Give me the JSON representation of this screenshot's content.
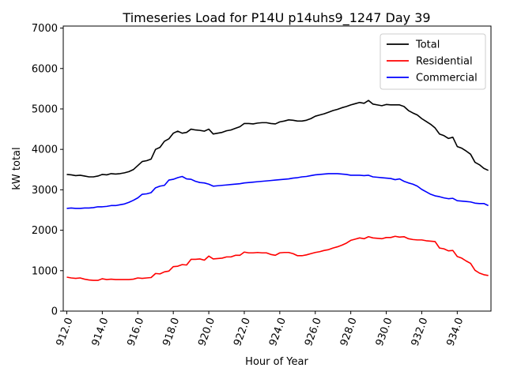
{
  "chart_data": {
    "type": "line",
    "title": "Timeseries Load for P14U p14uhs9_1247  Day 39",
    "xlabel": "Hour of Year",
    "ylabel": "kW total",
    "xlim": [
      911.8,
      935.9
    ],
    "ylim": [
      0,
      7050
    ],
    "xticks": [
      912,
      914,
      916,
      918,
      920,
      922,
      924,
      926,
      928,
      930,
      932,
      934
    ],
    "xtick_labels": [
      "912.0",
      "914.0",
      "916.0",
      "918.0",
      "920.0",
      "922.0",
      "924.0",
      "926.0",
      "928.0",
      "930.0",
      "932.0",
      "934.0"
    ],
    "yticks": [
      0,
      1000,
      2000,
      3000,
      4000,
      5000,
      6000,
      7000
    ],
    "ytick_labels": [
      "0",
      "1000",
      "2000",
      "3000",
      "4000",
      "5000",
      "6000",
      "7000"
    ],
    "legend_position": "top-right",
    "x": [
      912.0,
      912.25,
      912.5,
      912.75,
      913.0,
      913.25,
      913.5,
      913.75,
      914.0,
      914.25,
      914.5,
      914.75,
      915.0,
      915.25,
      915.5,
      915.75,
      916.0,
      916.25,
      916.5,
      916.75,
      917.0,
      917.25,
      917.5,
      917.75,
      918.0,
      918.25,
      918.5,
      918.75,
      919.0,
      919.25,
      919.5,
      919.75,
      920.0,
      920.25,
      920.5,
      920.75,
      921.0,
      921.25,
      921.5,
      921.75,
      922.0,
      922.25,
      922.5,
      922.75,
      923.0,
      923.25,
      923.5,
      923.75,
      924.0,
      924.25,
      924.5,
      924.75,
      925.0,
      925.25,
      925.5,
      925.75,
      926.0,
      926.25,
      926.5,
      926.75,
      927.0,
      927.25,
      927.5,
      927.75,
      928.0,
      928.25,
      928.5,
      928.75,
      929.0,
      929.25,
      929.5,
      929.75,
      930.0,
      930.25,
      930.5,
      930.75,
      931.0,
      931.25,
      931.5,
      931.75,
      932.0,
      932.25,
      932.5,
      932.75,
      933.0,
      933.25,
      933.5,
      933.75,
      934.0,
      934.25,
      934.5,
      934.75,
      935.0,
      935.25,
      935.5,
      935.75
    ],
    "series": [
      {
        "name": "Total",
        "color": "#000000",
        "values": [
          3380,
          3370,
          3350,
          3360,
          3340,
          3320,
          3320,
          3340,
          3380,
          3370,
          3400,
          3390,
          3400,
          3420,
          3450,
          3500,
          3600,
          3700,
          3720,
          3760,
          4000,
          4050,
          4200,
          4260,
          4400,
          4450,
          4400,
          4420,
          4500,
          4480,
          4470,
          4450,
          4500,
          4380,
          4400,
          4420,
          4460,
          4480,
          4520,
          4560,
          4640,
          4640,
          4630,
          4650,
          4660,
          4660,
          4640,
          4630,
          4680,
          4700,
          4730,
          4720,
          4700,
          4700,
          4720,
          4760,
          4820,
          4850,
          4880,
          4920,
          4960,
          4990,
          5030,
          5060,
          5100,
          5130,
          5160,
          5140,
          5210,
          5120,
          5100,
          5080,
          5110,
          5100,
          5100,
          5100,
          5060,
          4960,
          4900,
          4850,
          4760,
          4690,
          4620,
          4530,
          4380,
          4340,
          4270,
          4300,
          4070,
          4030,
          3960,
          3880,
          3680,
          3620,
          3530,
          3480
        ]
      },
      {
        "name": "Residential",
        "color": "#ff0000",
        "values": [
          840,
          820,
          810,
          820,
          790,
          770,
          760,
          760,
          800,
          780,
          790,
          780,
          780,
          780,
          780,
          790,
          820,
          810,
          820,
          830,
          930,
          920,
          970,
          990,
          1100,
          1110,
          1150,
          1140,
          1280,
          1280,
          1290,
          1260,
          1360,
          1290,
          1300,
          1310,
          1340,
          1340,
          1380,
          1380,
          1460,
          1440,
          1440,
          1450,
          1440,
          1440,
          1400,
          1380,
          1440,
          1450,
          1450,
          1420,
          1370,
          1370,
          1390,
          1420,
          1450,
          1470,
          1500,
          1520,
          1560,
          1590,
          1630,
          1680,
          1750,
          1780,
          1810,
          1790,
          1840,
          1810,
          1800,
          1790,
          1820,
          1820,
          1850,
          1830,
          1840,
          1790,
          1770,
          1760,
          1760,
          1740,
          1730,
          1720,
          1560,
          1540,
          1490,
          1500,
          1350,
          1310,
          1240,
          1180,
          1010,
          940,
          900,
          880
        ]
      },
      {
        "name": "Commercial",
        "color": "#0000ff",
        "values": [
          2540,
          2550,
          2540,
          2540,
          2550,
          2550,
          2560,
          2580,
          2580,
          2590,
          2610,
          2610,
          2630,
          2650,
          2690,
          2740,
          2800,
          2890,
          2900,
          2930,
          3050,
          3090,
          3110,
          3240,
          3260,
          3300,
          3330,
          3270,
          3260,
          3210,
          3180,
          3170,
          3140,
          3090,
          3100,
          3110,
          3120,
          3130,
          3140,
          3150,
          3170,
          3180,
          3190,
          3200,
          3210,
          3220,
          3230,
          3240,
          3250,
          3260,
          3270,
          3290,
          3300,
          3320,
          3330,
          3350,
          3370,
          3380,
          3390,
          3400,
          3400,
          3400,
          3390,
          3380,
          3360,
          3360,
          3360,
          3350,
          3360,
          3320,
          3310,
          3300,
          3290,
          3280,
          3250,
          3270,
          3210,
          3170,
          3140,
          3090,
          3010,
          2950,
          2890,
          2850,
          2830,
          2800,
          2780,
          2790,
          2730,
          2720,
          2710,
          2700,
          2670,
          2660,
          2660,
          2610
        ]
      }
    ]
  }
}
